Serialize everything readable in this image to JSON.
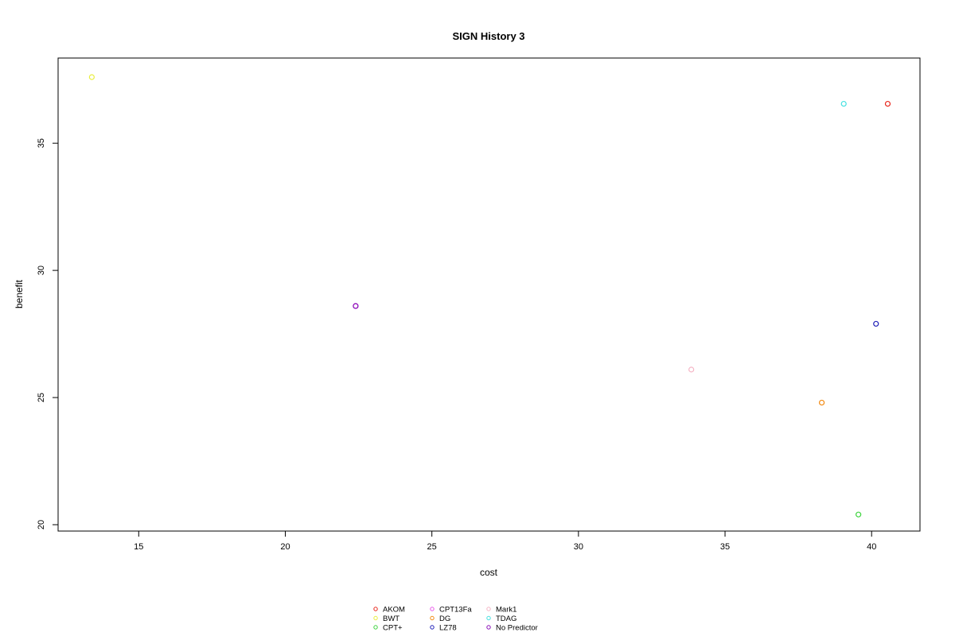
{
  "chart_data": {
    "type": "scatter",
    "title": "SIGN  History  3",
    "xlabel": "cost",
    "ylabel": "benefit",
    "xlim": [
      12.25,
      41.65
    ],
    "ylim": [
      19.75,
      38.35
    ],
    "x_ticks": [
      "15",
      "20",
      "25",
      "30",
      "35",
      "40"
    ],
    "y_ticks": [
      "20",
      "25",
      "30",
      "35"
    ],
    "grid": false,
    "legend_position": "bottom",
    "series": [
      {
        "name": "AKOM",
        "color": "#e8261c",
        "points": [
          {
            "x": 40.55,
            "y": 36.55
          }
        ]
      },
      {
        "name": "BWT",
        "color": "#e8ee3f",
        "points": [
          {
            "x": 13.4,
            "y": 37.6
          }
        ]
      },
      {
        "name": "CPT+",
        "color": "#3fd43f",
        "points": [
          {
            "x": 39.55,
            "y": 20.4
          }
        ]
      },
      {
        "name": "CPT13Fa",
        "color": "#e858e8",
        "points": [
          {
            "x": 22.4,
            "y": 28.6
          }
        ]
      },
      {
        "name": "DG",
        "color": "#f28a12",
        "points": [
          {
            "x": 38.3,
            "y": 24.8
          }
        ]
      },
      {
        "name": "LZ78",
        "color": "#2020b8",
        "points": [
          {
            "x": 40.15,
            "y": 27.9
          }
        ]
      },
      {
        "name": "Mark1",
        "color": "#f5b5c5",
        "points": [
          {
            "x": 33.85,
            "y": 26.1
          }
        ]
      },
      {
        "name": "TDAG",
        "color": "#45e0e0",
        "points": [
          {
            "x": 39.05,
            "y": 36.55
          }
        ]
      },
      {
        "name": "No Predictor",
        "color": "#8a10b8",
        "points": [
          {
            "x": 22.4,
            "y": 28.6
          }
        ]
      }
    ]
  }
}
